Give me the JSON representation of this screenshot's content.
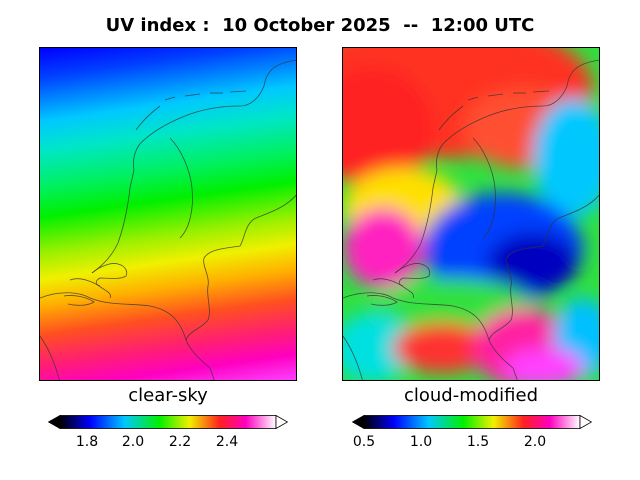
{
  "title": "UV index :  10 October 2025  --  12:00 UTC",
  "panels": [
    {
      "label": "clear-sky",
      "colorbar_ticks": [
        "1.8",
        "2.0",
        "2.2",
        "2.4"
      ]
    },
    {
      "label": "cloud-modified",
      "colorbar_ticks": [
        "0.5",
        "1.0",
        "1.5",
        "2.0"
      ]
    }
  ],
  "colors": {
    "scale": [
      "#000000",
      "#0000ff",
      "#00c8ff",
      "#00f000",
      "#f0f000",
      "#ff2020",
      "#ff00c0",
      "#ffffff"
    ]
  }
}
